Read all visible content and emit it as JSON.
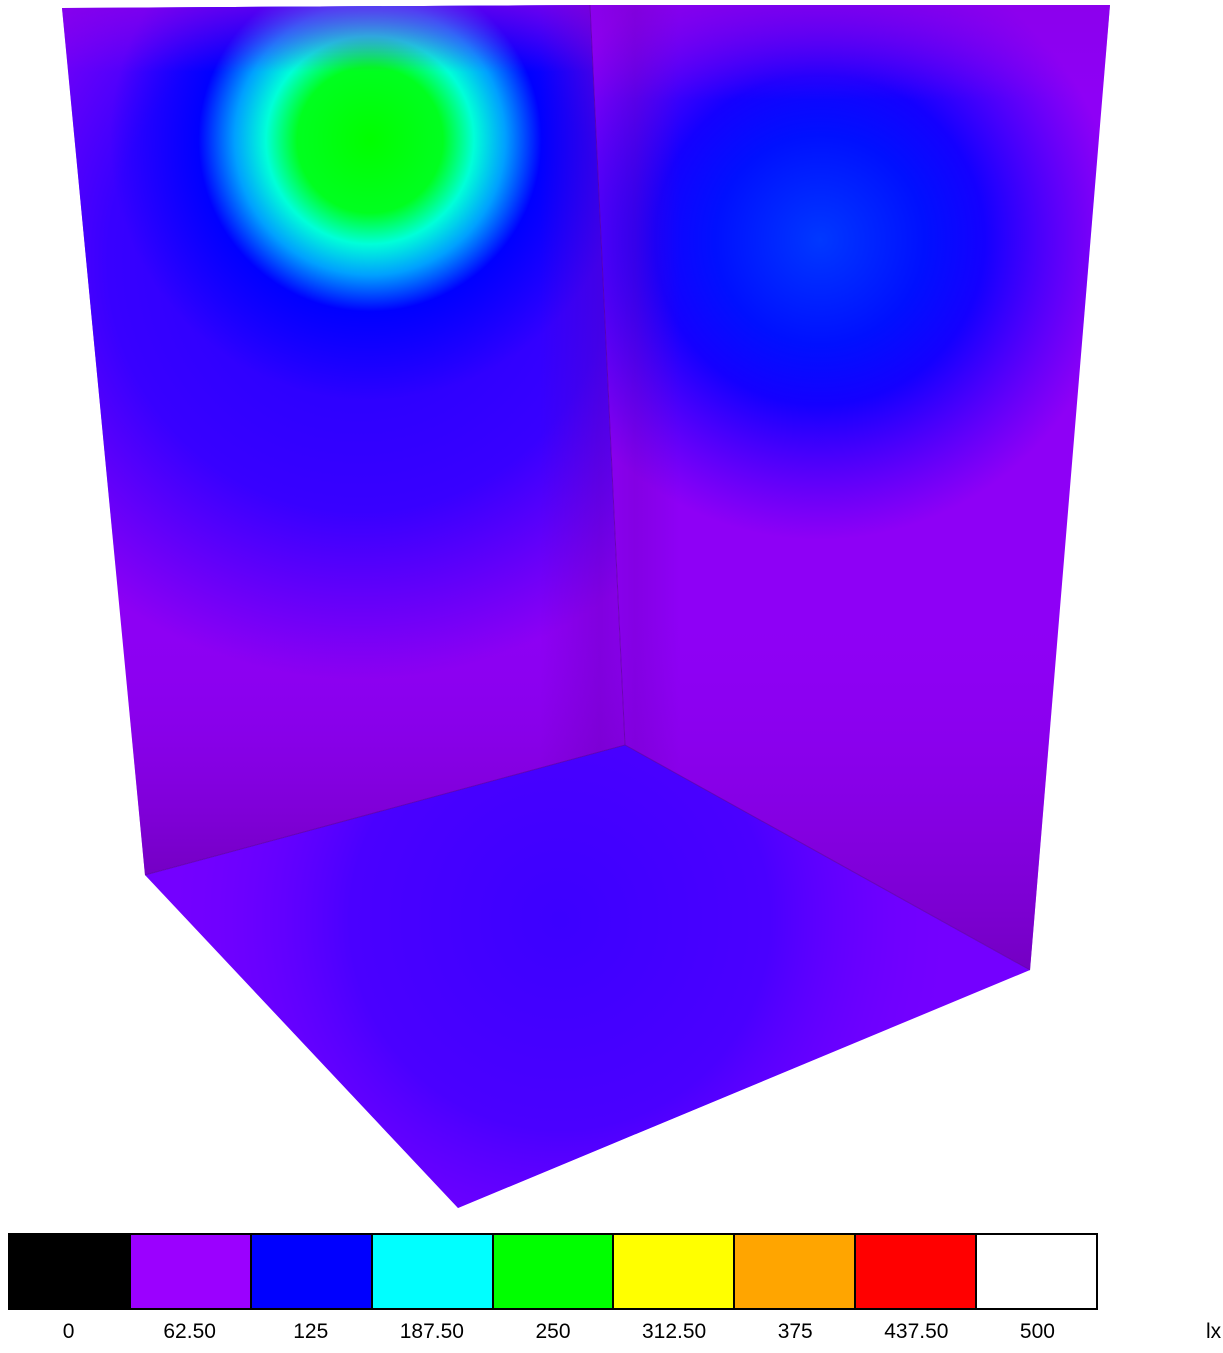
{
  "scale": {
    "unit": "lx",
    "ticks": [
      "0",
      "62.50",
      "125",
      "187.50",
      "250",
      "312.50",
      "375",
      "437.50",
      "500"
    ],
    "colors": [
      "#000000",
      "#9b00ff",
      "#0000ff",
      "#00ffff",
      "#00ff00",
      "#ffff00",
      "#ffa500",
      "#ff0000",
      "#ffffff"
    ]
  },
  "surfaces": {
    "left_wall_base": "#8a10ee",
    "right_wall_base": "#8a12f0",
    "floor_base": "#6a0cf8",
    "corner_shadow": "#5a0090"
  }
}
